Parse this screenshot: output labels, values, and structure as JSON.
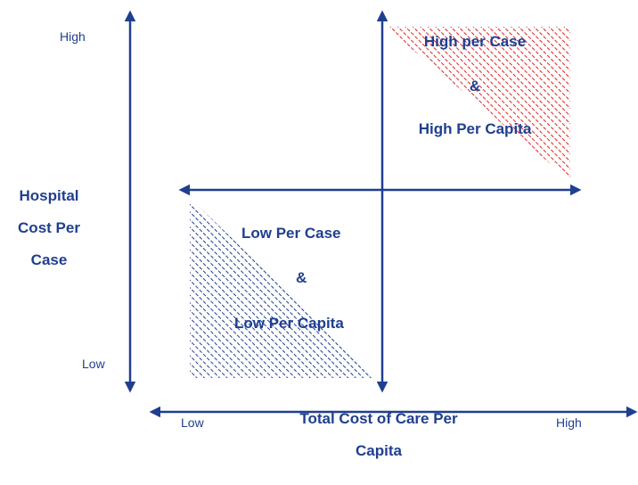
{
  "y_axis": {
    "high_label": "High",
    "low_label": "Low",
    "title_lines": [
      "Hospital",
      "Cost Per",
      "Case"
    ]
  },
  "x_axis": {
    "low_label": "Low",
    "high_label": "High",
    "title_lines": [
      "Total Cost of Care Per",
      "Capita"
    ]
  },
  "quadrants": {
    "high": {
      "lines": [
        "High per Case",
        "&",
        "High Per Capita"
      ],
      "color": "#e02020"
    },
    "low": {
      "lines": [
        "Low Per Case",
        "&",
        "Low Per Capita"
      ],
      "color": "#1f3f8f"
    }
  },
  "colors": {
    "axis": "#1f3f8f",
    "text": "#1f3f8f"
  }
}
